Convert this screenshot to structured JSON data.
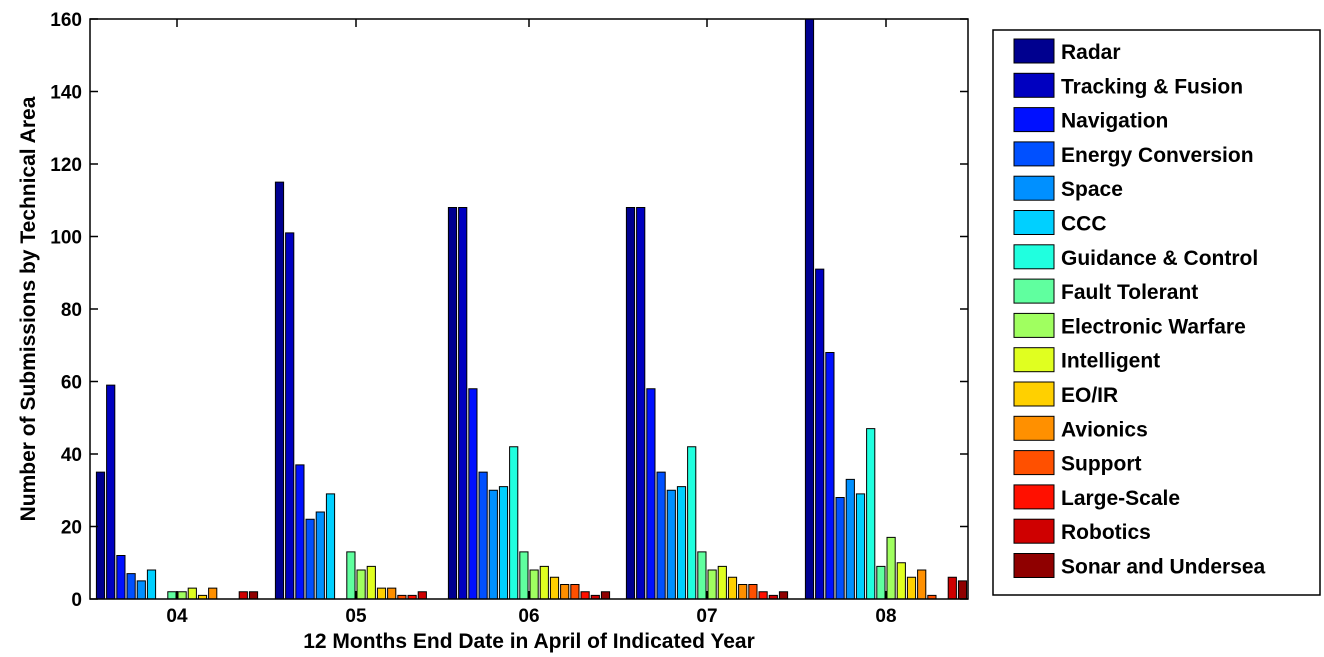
{
  "chart_data": {
    "type": "bar",
    "title": "",
    "xlabel": "12 Months End Date in April of Indicated Year",
    "ylabel": "Number of Submissions by Technical Area",
    "ylim": [
      0,
      160
    ],
    "yticks": [
      0,
      20,
      40,
      60,
      80,
      100,
      120,
      140,
      160
    ],
    "categories": [
      "04",
      "05",
      "06",
      "07",
      "08"
    ],
    "grid": false,
    "legend_position": "right-outside",
    "series": [
      {
        "name": "Radar",
        "color": "#00008f",
        "values": [
          35,
          115,
          108,
          108,
          160
        ]
      },
      {
        "name": "Tracking & Fusion",
        "color": "#0000c0",
        "values": [
          59,
          101,
          108,
          108,
          91
        ]
      },
      {
        "name": "Navigation",
        "color": "#0010ff",
        "values": [
          12,
          37,
          58,
          58,
          68
        ]
      },
      {
        "name": "Energy Conversion",
        "color": "#0050ff",
        "values": [
          7,
          22,
          35,
          35,
          28
        ]
      },
      {
        "name": "Space",
        "color": "#0090ff",
        "values": [
          5,
          24,
          30,
          30,
          33
        ]
      },
      {
        "name": "CCC",
        "color": "#00d0ff",
        "values": [
          8,
          29,
          31,
          31,
          29
        ]
      },
      {
        "name": "Guidance & Control",
        "color": "#20ffdf",
        "values": [
          0,
          0,
          42,
          42,
          47
        ]
      },
      {
        "name": "Fault Tolerant",
        "color": "#60ff9f",
        "values": [
          2,
          13,
          13,
          13,
          9
        ]
      },
      {
        "name": "Electronic Warfare",
        "color": "#a0ff60",
        "values": [
          2,
          8,
          8,
          8,
          17
        ]
      },
      {
        "name": "Intelligent",
        "color": "#e0ff20",
        "values": [
          3,
          9,
          9,
          9,
          10
        ]
      },
      {
        "name": "EO/IR",
        "color": "#ffd000",
        "values": [
          1,
          3,
          6,
          6,
          6
        ]
      },
      {
        "name": "Avionics",
        "color": "#ff9000",
        "values": [
          3,
          3,
          4,
          4,
          8
        ]
      },
      {
        "name": "Support",
        "color": "#ff5000",
        "values": [
          0,
          1,
          4,
          4,
          1
        ]
      },
      {
        "name": "Large-Scale",
        "color": "#ff1000",
        "values": [
          0,
          1,
          2,
          2,
          0
        ]
      },
      {
        "name": "Robotics",
        "color": "#cf0000",
        "values": [
          2,
          2,
          1,
          1,
          6
        ]
      },
      {
        "name": "Sonar and Undersea",
        "color": "#8f0000",
        "values": [
          2,
          0,
          2,
          2,
          5
        ]
      }
    ]
  }
}
